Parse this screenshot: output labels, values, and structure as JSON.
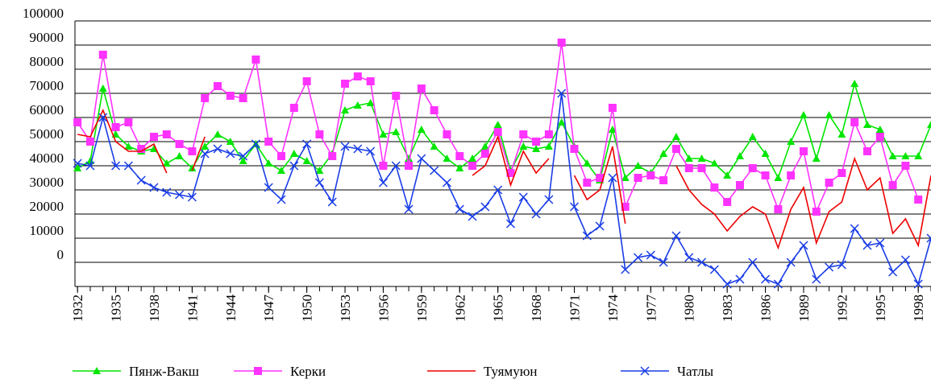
{
  "chart_data": {
    "type": "line",
    "x": [
      1932,
      1933,
      1934,
      1935,
      1936,
      1937,
      1938,
      1939,
      1940,
      1941,
      1942,
      1943,
      1944,
      1945,
      1946,
      1947,
      1948,
      1949,
      1950,
      1951,
      1952,
      1953,
      1954,
      1955,
      1956,
      1957,
      1958,
      1959,
      1960,
      1961,
      1962,
      1963,
      1964,
      1965,
      1966,
      1967,
      1968,
      1969,
      1970,
      1971,
      1972,
      1973,
      1974,
      1975,
      1976,
      1977,
      1978,
      1979,
      1980,
      1981,
      1982,
      1983,
      1984,
      1985,
      1986,
      1987,
      1988,
      1989,
      1990,
      1991,
      1992,
      1993,
      1994,
      1995,
      1996,
      1997,
      1998,
      1999
    ],
    "xlim": [
      1931.8,
      1999
    ],
    "xticks": [
      1932,
      1935,
      1938,
      1941,
      1944,
      1947,
      1950,
      1953,
      1956,
      1959,
      1962,
      1965,
      1968,
      1971,
      1974,
      1977,
      1980,
      1983,
      1986,
      1989,
      1992,
      1995,
      1998
    ],
    "ylim": [
      -10000,
      100000
    ],
    "yticks": [
      0,
      10000,
      20000,
      30000,
      40000,
      50000,
      60000,
      70000,
      80000,
      90000,
      100000
    ],
    "grid": true,
    "legend": "bottom",
    "series": [
      {
        "name": "Пянж-Вакш",
        "color": "#00e600",
        "marker": "triangle",
        "values": [
          39000,
          42000,
          72000,
          53000,
          48000,
          46000,
          47000,
          41000,
          44000,
          39000,
          48000,
          53000,
          50000,
          42000,
          49000,
          41000,
          38000,
          45000,
          42000,
          38000,
          45000,
          63000,
          65000,
          66000,
          53000,
          54000,
          43000,
          55000,
          48000,
          43000,
          39000,
          43000,
          48000,
          57000,
          38000,
          48000,
          47000,
          48000,
          58000,
          48000,
          41000,
          34000,
          55000,
          35000,
          40000,
          37000,
          45000,
          52000,
          43000,
          43000,
          41000,
          36000,
          44000,
          52000,
          45000,
          35000,
          50000,
          61000,
          43000,
          61000,
          53000,
          74000,
          57000,
          55000,
          44000,
          44000,
          44000,
          57000
        ]
      },
      {
        "name": "Керки",
        "color": "#ff33ff",
        "marker": "square",
        "values": [
          58000,
          50000,
          86000,
          56000,
          58000,
          47000,
          52000,
          53000,
          49000,
          46000,
          68000,
          73000,
          69000,
          68000,
          84000,
          50000,
          44000,
          64000,
          75000,
          53000,
          44000,
          74000,
          77000,
          75000,
          40000,
          69000,
          40000,
          72000,
          63000,
          53000,
          44000,
          40000,
          45000,
          54000,
          37000,
          53000,
          50000,
          53000,
          91000,
          47000,
          33000,
          35000,
          64000,
          23000,
          35000,
          36000,
          34000,
          47000,
          39000,
          39000,
          31000,
          25000,
          32000,
          39000,
          36000,
          22000,
          36000,
          46000,
          21000,
          33000,
          37000,
          58000,
          46000,
          52000,
          32000,
          40000,
          26000,
          null
        ]
      },
      {
        "name": "Туямуюн",
        "color": "#ee0000",
        "marker": "none",
        "values": [
          53000,
          52000,
          63000,
          50000,
          46000,
          46000,
          49000,
          37000,
          null,
          38000,
          52000,
          null,
          null,
          null,
          null,
          null,
          null,
          null,
          null,
          null,
          null,
          null,
          null,
          null,
          null,
          null,
          null,
          null,
          null,
          null,
          null,
          36000,
          40000,
          52000,
          32000,
          46000,
          37000,
          43000,
          null,
          36000,
          26000,
          30000,
          48000,
          16000,
          null,
          null,
          null,
          40000,
          30000,
          24000,
          20000,
          13000,
          19000,
          23000,
          20000,
          6000,
          22000,
          31000,
          8000,
          21000,
          25000,
          43000,
          30000,
          35000,
          12000,
          18000,
          7000,
          36000
        ]
      },
      {
        "name": "Чатлы",
        "color": "#1a3de6",
        "marker": "x",
        "values": [
          41000,
          40000,
          60000,
          40000,
          40000,
          34000,
          31000,
          29000,
          28000,
          27000,
          45000,
          47000,
          45000,
          44000,
          49000,
          31000,
          26000,
          40000,
          49000,
          33000,
          25000,
          48000,
          47000,
          46000,
          33000,
          40000,
          22000,
          43000,
          38000,
          33000,
          22000,
          19000,
          23000,
          30000,
          16000,
          27000,
          20000,
          26000,
          70000,
          23000,
          11000,
          15000,
          35000,
          -3000,
          2000,
          3000,
          0,
          11000,
          2000,
          0,
          -3000,
          -9000,
          -7000,
          0,
          -7000,
          -9000,
          0,
          7000,
          -7000,
          -2000,
          -1000,
          14000,
          7000,
          8000,
          -4000,
          1000,
          -9000,
          10000
        ]
      }
    ]
  }
}
